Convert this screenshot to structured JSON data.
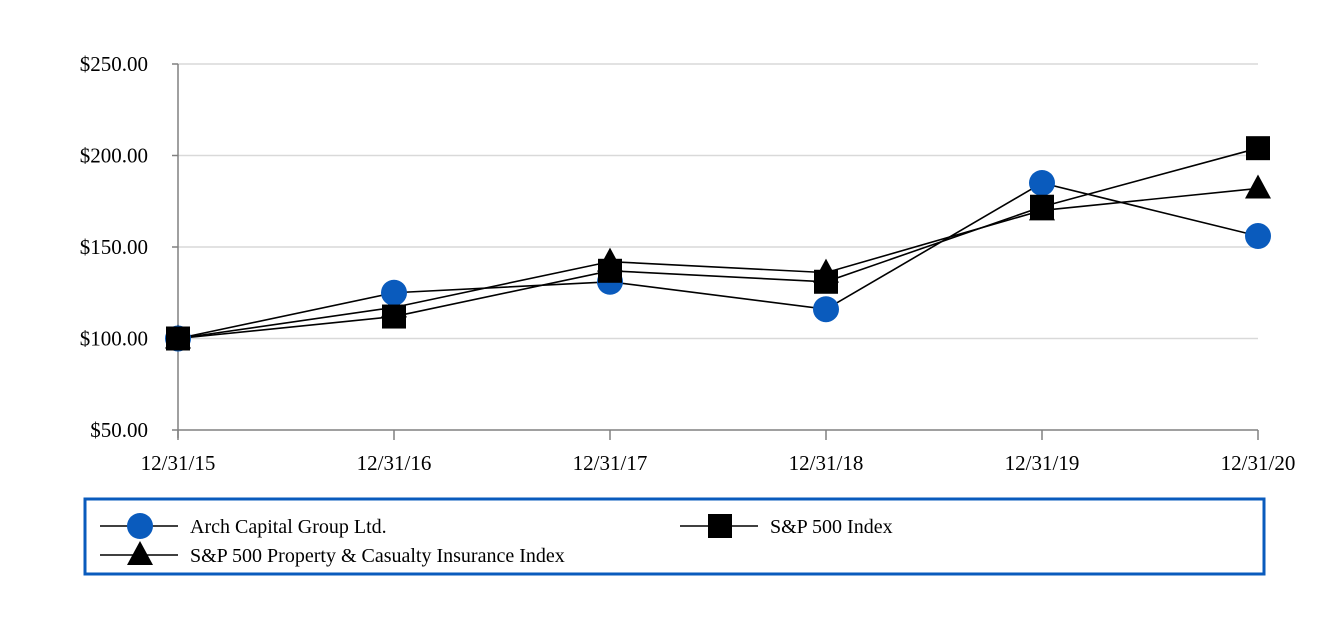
{
  "chart_data": {
    "type": "line",
    "title": "",
    "xlabel": "",
    "ylabel": "",
    "categories": [
      "12/31/15",
      "12/31/16",
      "12/31/17",
      "12/31/18",
      "12/31/19",
      "12/31/20"
    ],
    "ylim": [
      50,
      250
    ],
    "yticks": [
      "$50.00",
      "$100.00",
      "$150.00",
      "$200.00",
      "$250.00"
    ],
    "ytick_values": [
      50,
      100,
      150,
      200,
      250
    ],
    "grid": true,
    "legend_position": "bottom",
    "series": [
      {
        "name": "Arch Capital Group Ltd.",
        "marker": "circle",
        "color": "#0a5bbd",
        "values": [
          100,
          125,
          131,
          116,
          185,
          156
        ]
      },
      {
        "name": "S&P 500 Index",
        "marker": "square",
        "color": "#000000",
        "values": [
          100,
          112,
          137,
          131,
          172,
          204
        ]
      },
      {
        "name": "S&P 500 Property & Casualty Insurance Index",
        "marker": "triangle",
        "color": "#000000",
        "values": [
          100,
          117,
          142,
          136,
          170,
          182
        ]
      }
    ]
  }
}
